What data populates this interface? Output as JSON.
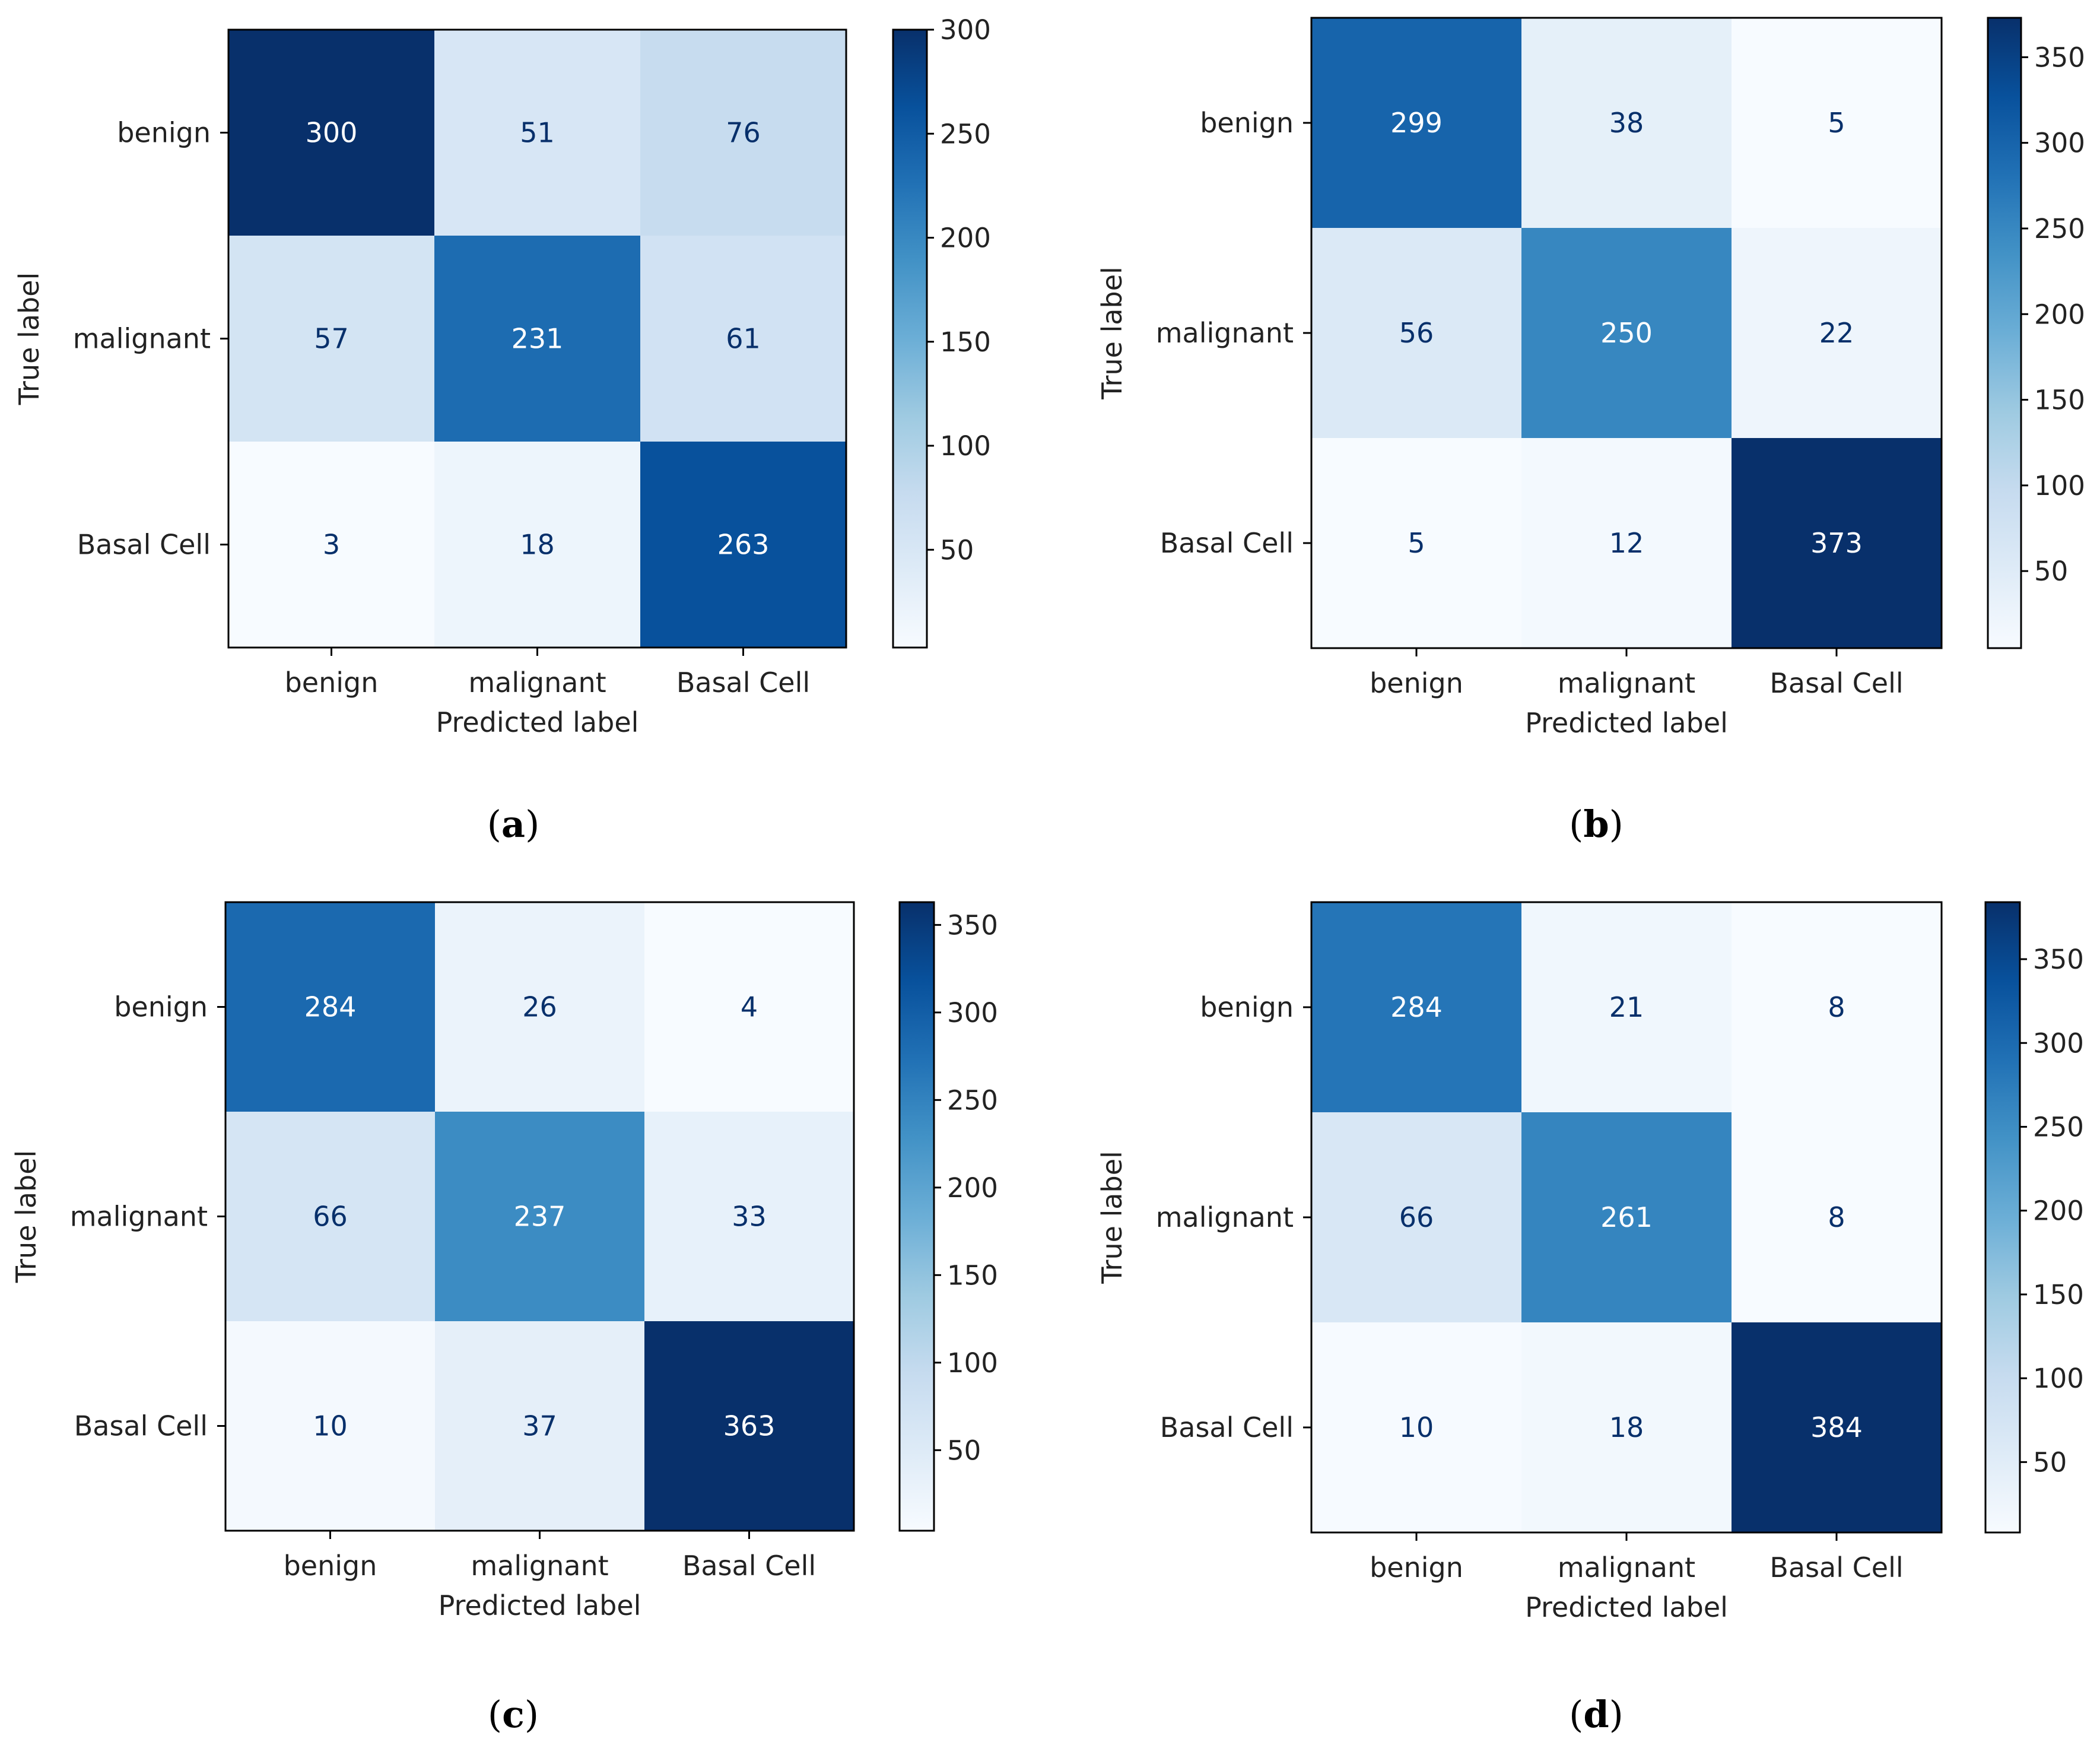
{
  "chart_data": [
    {
      "type": "heatmap",
      "panel": "a",
      "caption_open": "(",
      "caption_letter": "a",
      "caption_close": ")",
      "xlabel": "Predicted label",
      "ylabel": "True label",
      "x_categories": [
        "benign",
        "malignant",
        "Basal Cell"
      ],
      "y_categories": [
        "benign",
        "malignant",
        "Basal Cell"
      ],
      "values": [
        [
          300,
          51,
          76
        ],
        [
          57,
          231,
          61
        ],
        [
          3,
          18,
          263
        ]
      ],
      "colorbar": {
        "min": 3,
        "max": 300,
        "ticks": [
          50,
          100,
          150,
          200,
          250,
          300
        ]
      }
    },
    {
      "type": "heatmap",
      "panel": "b",
      "caption_open": "(",
      "caption_letter": "b",
      "caption_close": ")",
      "xlabel": "Predicted label",
      "ylabel": "True label",
      "x_categories": [
        "benign",
        "malignant",
        "Basal Cell"
      ],
      "y_categories": [
        "benign",
        "malignant",
        "Basal Cell"
      ],
      "values": [
        [
          299,
          38,
          5
        ],
        [
          56,
          250,
          22
        ],
        [
          5,
          12,
          373
        ]
      ],
      "colorbar": {
        "min": 5,
        "max": 373,
        "ticks": [
          50,
          100,
          150,
          200,
          250,
          300,
          350
        ]
      }
    },
    {
      "type": "heatmap",
      "panel": "c",
      "caption_open": "(",
      "caption_letter": "c",
      "caption_close": ")",
      "xlabel": "Predicted label",
      "ylabel": "True label",
      "x_categories": [
        "benign",
        "malignant",
        "Basal Cell"
      ],
      "y_categories": [
        "benign",
        "malignant",
        "Basal Cell"
      ],
      "values": [
        [
          284,
          26,
          4
        ],
        [
          66,
          237,
          33
        ],
        [
          10,
          37,
          363
        ]
      ],
      "colorbar": {
        "min": 4,
        "max": 363,
        "ticks": [
          50,
          100,
          150,
          200,
          250,
          300,
          350
        ]
      }
    },
    {
      "type": "heatmap",
      "panel": "d",
      "caption_open": "(",
      "caption_letter": "d",
      "caption_close": ")",
      "xlabel": "Predicted label",
      "ylabel": "True label",
      "x_categories": [
        "benign",
        "malignant",
        "Basal Cell"
      ],
      "y_categories": [
        "benign",
        "malignant",
        "Basal Cell"
      ],
      "values": [
        [
          284,
          21,
          8
        ],
        [
          66,
          261,
          8
        ],
        [
          10,
          18,
          384
        ]
      ],
      "colorbar": {
        "min": 8,
        "max": 384,
        "ticks": [
          50,
          100,
          150,
          200,
          250,
          300,
          350
        ]
      }
    }
  ],
  "colors": {
    "colormap": "Blues",
    "text_on_dark": "#ffffff",
    "text_on_light": "#08306b"
  }
}
